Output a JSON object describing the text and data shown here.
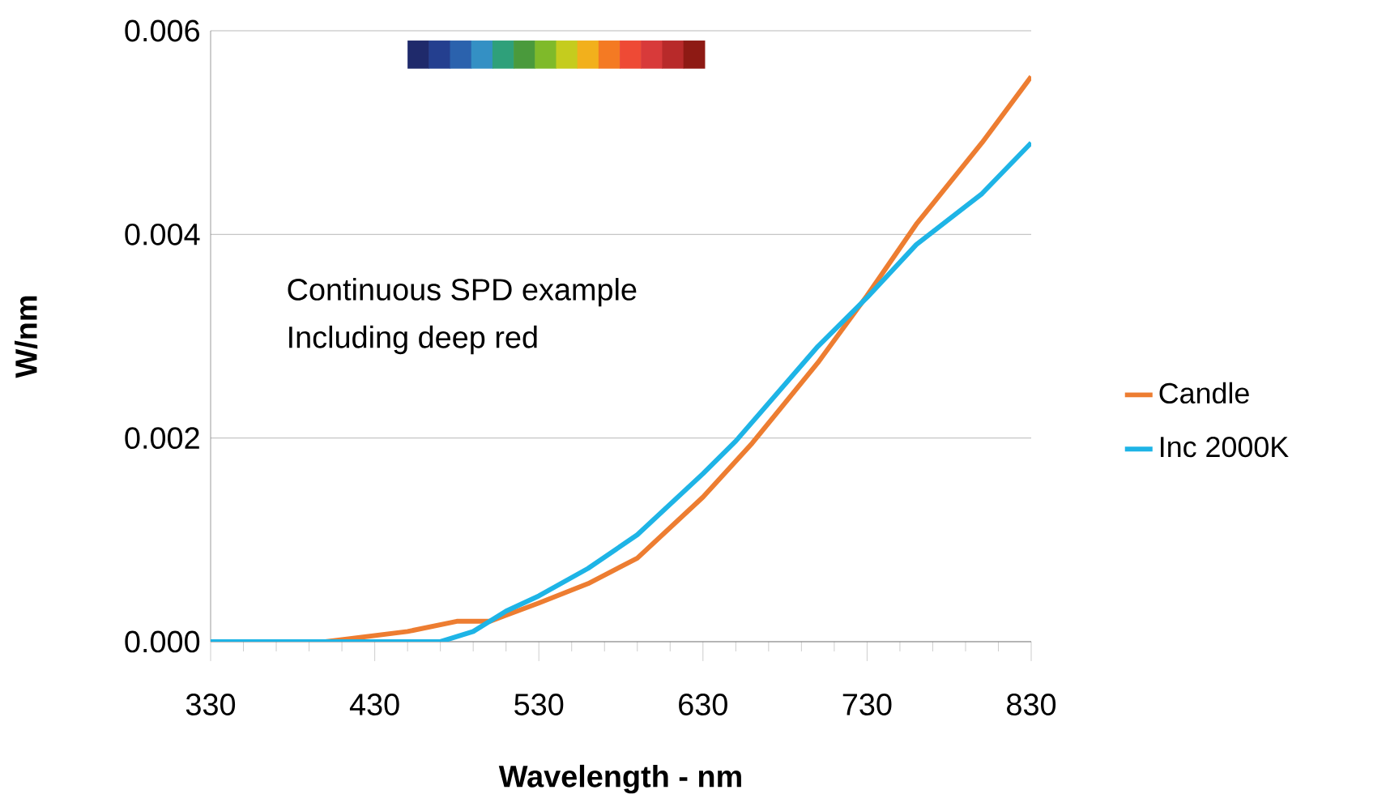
{
  "chart_data": {
    "type": "line",
    "xlabel": "Wavelength - nm",
    "ylabel": "W/nm",
    "annotations": [
      "Continuous SPD example",
      "Including deep red"
    ],
    "x": [
      330,
      400,
      450,
      480,
      500,
      530,
      560,
      590,
      630,
      660,
      700,
      730,
      760,
      800,
      830
    ],
    "series": [
      {
        "name": "Candle",
        "color": "#ed7d31",
        "values": [
          0.0,
          0.0,
          0.0001,
          0.0002,
          0.0002,
          0.00038,
          0.00057,
          0.00082,
          0.00142,
          0.00195,
          0.00274,
          0.0034,
          0.0041,
          0.0049,
          0.00555
        ]
      },
      {
        "name": "Inc 2000K",
        "color": "#1eb4e6",
        "x": [
          330,
          450,
          470,
          490,
          510,
          530,
          560,
          590,
          630,
          650,
          700,
          730,
          760,
          800,
          830
        ],
        "values": [
          0.0,
          0.0,
          0.0,
          0.0001,
          0.0003,
          0.00045,
          0.00072,
          0.00105,
          0.00165,
          0.00197,
          0.0029,
          0.00338,
          0.0039,
          0.0044,
          0.0049
        ]
      }
    ],
    "xlim": [
      330,
      830
    ],
    "xticks": [
      330,
      430,
      530,
      630,
      730,
      830
    ],
    "ylim": [
      0,
      0.006
    ],
    "yticks": [
      {
        "value": 0,
        "label": "0.000"
      },
      {
        "value": 0.002,
        "label": "0.002"
      },
      {
        "value": 0.004,
        "label": "0.004"
      },
      {
        "value": 0.006,
        "label": "0.006"
      }
    ],
    "grid": "y",
    "legend": "right",
    "marker": "none",
    "line_style": "solid"
  }
}
